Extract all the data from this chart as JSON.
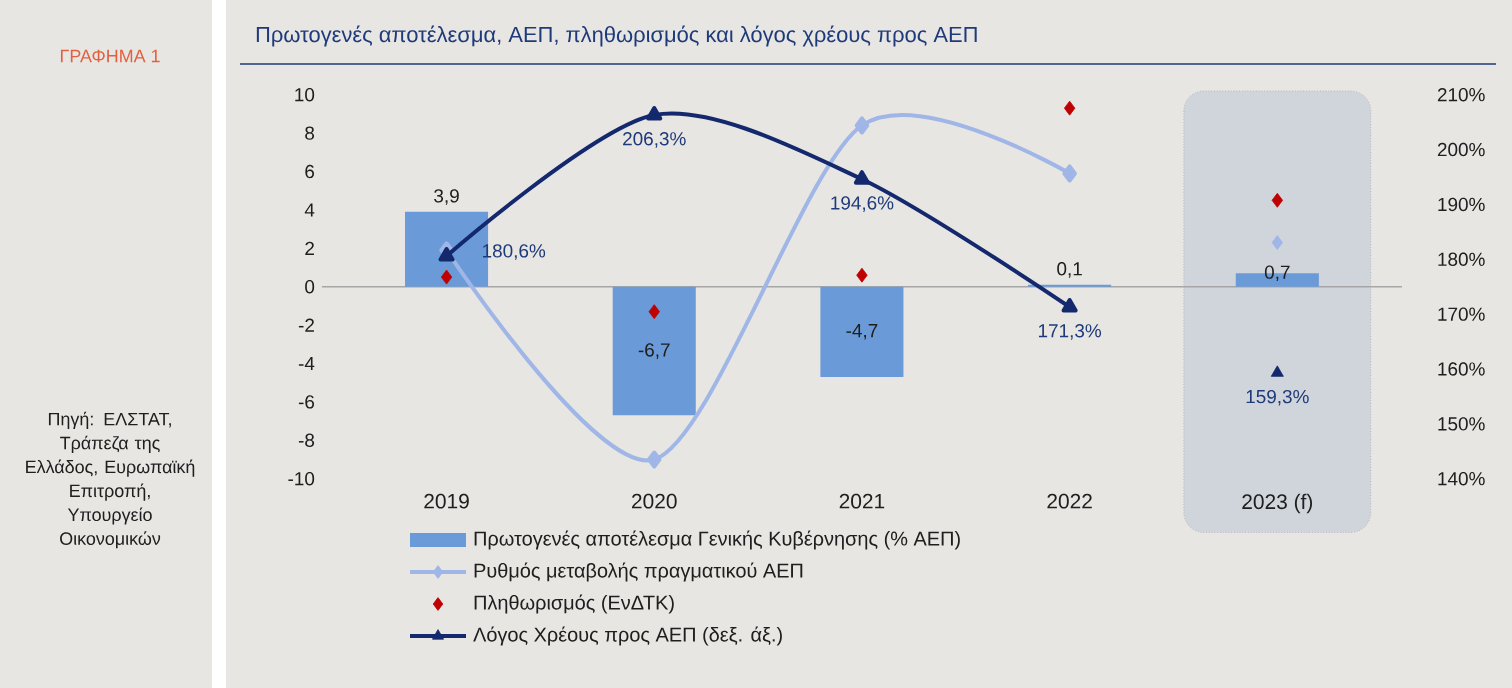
{
  "chart_data": {
    "type": "bar",
    "title": "Πρωτογενές αποτέλεσμα, ΑΕΠ, πληθωρισμός και λόγος χρέους προς ΑΕΠ",
    "annotations": [
      "ΓΡΑΦΗΜΑ 1",
      "Πηγή: ΕΛΣΤΑΤ, Τράπεζα της Ελλάδος, Ευρωπαϊκή Επιτροπή, Υπουργείο Οικονομικών"
    ],
    "categories": [
      "2019",
      "2020",
      "2021",
      "2022",
      "2023 (f)"
    ],
    "series": [
      {
        "name": "Πρωτογενές αποτέλεσμα Γενικής Κυβέρνησης (% ΑΕΠ)",
        "color": "#6a9bd8",
        "values": [
          3.9,
          -6.7,
          -4.7,
          0.1,
          0.7
        ],
        "value_labels": [
          "3,9",
          "-6,7",
          "-4,7",
          "0,1",
          "0,7"
        ]
      },
      {
        "type": "line",
        "name": "Ρυθμός μεταβολής πραγματικού ΑΕΠ",
        "color": "#9fb6e6",
        "marker": "diamond",
        "values": [
          1.9,
          -9.0,
          8.4,
          5.9,
          null
        ]
      },
      {
        "type": "scatter",
        "color": "#9fb6e6",
        "marker": "diamond",
        "x": [
          "2023 (f)"
        ],
        "values": [
          2.3
        ]
      },
      {
        "type": "scatter",
        "name": "Πληθωρισμός (ΕνΔΤΚ)",
        "color": "#c00000",
        "marker": "diamond",
        "values": [
          0.5,
          -1.3,
          0.6,
          9.3,
          4.5
        ]
      },
      {
        "type": "line",
        "name": "Λόγος Χρέους προς ΑΕΠ (δεξ. άξ.)",
        "color": "#14286e",
        "marker": "triangle",
        "axis": "y2",
        "values": [
          180.6,
          206.3,
          194.6,
          171.3,
          null
        ],
        "value_labels": [
          "180,6%",
          "206,3%",
          "194,6%",
          "171,3%",
          null
        ]
      },
      {
        "type": "scatter",
        "color": "#14286e",
        "marker": "triangle",
        "axis": "y2",
        "x": [
          "2023 (f)"
        ],
        "values": [
          159.3
        ],
        "value_labels": [
          "159,3%"
        ]
      }
    ],
    "bands": [
      {
        "axis": "x",
        "from": "2023 (f)",
        "to": "2023 (f)",
        "color": "#d0d5dc"
      }
    ],
    "ylim": [
      -10,
      10
    ],
    "yticks": [
      -10,
      -8,
      -6,
      -4,
      -2,
      0,
      2,
      4,
      6,
      8,
      10
    ],
    "y2lim": [
      140,
      210
    ],
    "y2ticks": [
      {
        "value": 140,
        "label": "140%"
      },
      {
        "value": 150,
        "label": "150%"
      },
      {
        "value": 160,
        "label": "160%"
      },
      {
        "value": 170,
        "label": "170%"
      },
      {
        "value": 180,
        "label": "180%"
      },
      {
        "value": 190,
        "label": "190%"
      },
      {
        "value": 200,
        "label": "200%"
      },
      {
        "value": 210,
        "label": "210%"
      }
    ],
    "legend": "bottom"
  }
}
